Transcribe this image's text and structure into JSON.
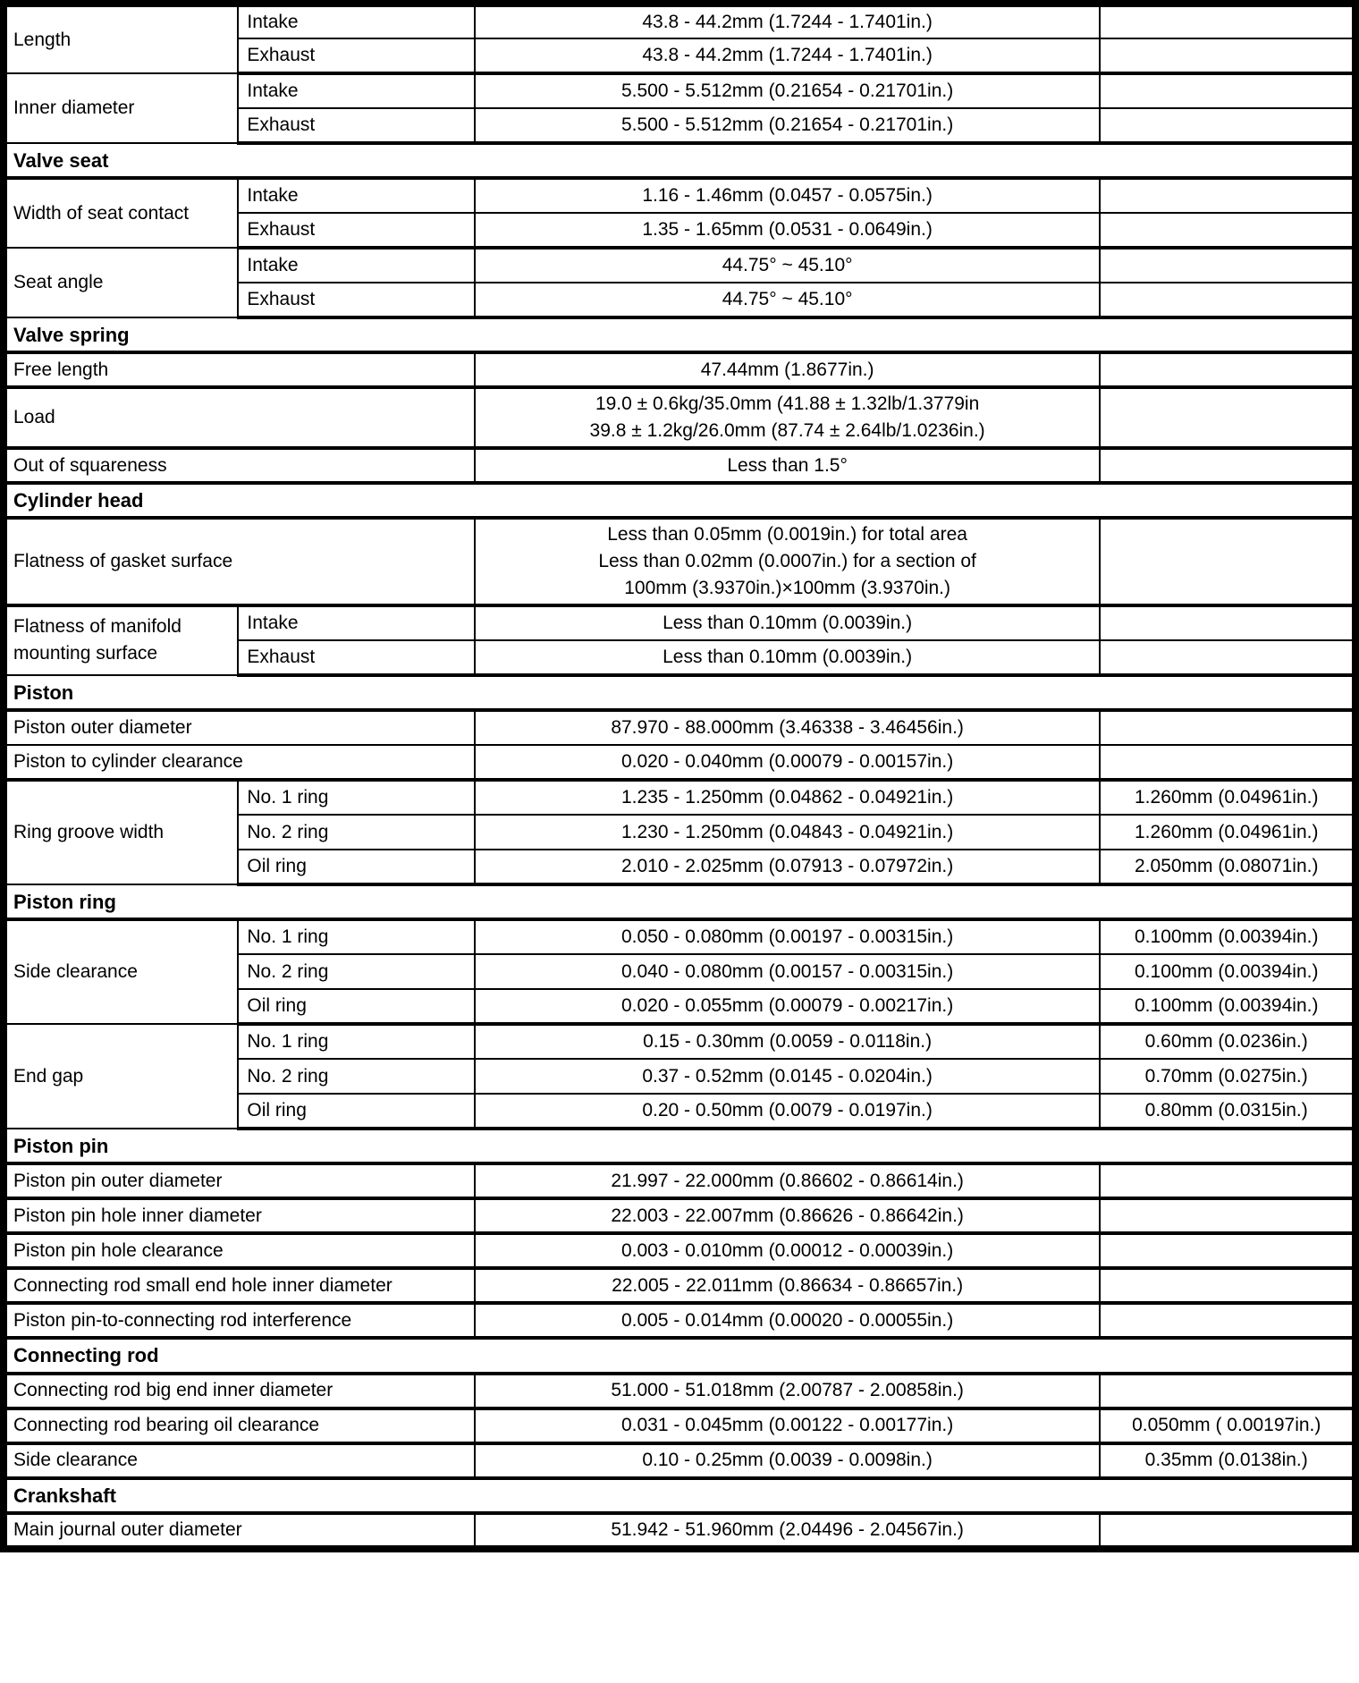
{
  "colors": {
    "background": "#ffffff",
    "text": "#000000",
    "border": "#000000"
  },
  "table": {
    "column_semantics": [
      "item",
      "sub_item",
      "standard_value",
      "limit"
    ],
    "rows": [
      {
        "type": "data",
        "h": "n",
        "thick_bottom": false,
        "cells": [
          {
            "kind": "item",
            "rowspan": 2,
            "text": "Length"
          },
          {
            "kind": "sub",
            "text": "Intake"
          },
          {
            "kind": "std",
            "text": "43.8 - 44.2mm (1.7244 - 1.7401in.)"
          },
          {
            "kind": "lim",
            "text": ""
          }
        ]
      },
      {
        "type": "data",
        "h": "n",
        "thick_bottom": true,
        "cells": [
          {
            "kind": "sub",
            "text": "Exhaust"
          },
          {
            "kind": "std",
            "text": "43.8 - 44.2mm (1.7244 - 1.7401in.)"
          },
          {
            "kind": "lim",
            "text": ""
          }
        ]
      },
      {
        "type": "data",
        "h": "n",
        "thick_bottom": false,
        "cells": [
          {
            "kind": "item",
            "rowspan": 2,
            "text": "Inner diameter"
          },
          {
            "kind": "sub",
            "text": "Intake"
          },
          {
            "kind": "std",
            "text": "5.500 - 5.512mm (0.21654 - 0.21701in.)"
          },
          {
            "kind": "lim",
            "text": ""
          }
        ]
      },
      {
        "type": "data",
        "h": "n",
        "thick_bottom": true,
        "cells": [
          {
            "kind": "sub",
            "text": "Exhaust"
          },
          {
            "kind": "std",
            "text": "5.500 - 5.512mm (0.21654 - 0.21701in.)"
          },
          {
            "kind": "lim",
            "text": ""
          }
        ]
      },
      {
        "type": "section",
        "h": "n",
        "thick_bottom": true,
        "cells": [
          {
            "kind": "section",
            "colspan": 4,
            "text": "Valve seat"
          }
        ]
      },
      {
        "type": "data",
        "h": "n",
        "thick_bottom": false,
        "cells": [
          {
            "kind": "item",
            "rowspan": 2,
            "text": "Width of seat contact"
          },
          {
            "kind": "sub",
            "text": "Intake"
          },
          {
            "kind": "std",
            "text": "1.16 - 1.46mm (0.0457 - 0.0575in.)"
          },
          {
            "kind": "lim",
            "text": ""
          }
        ]
      },
      {
        "type": "data",
        "h": "n",
        "thick_bottom": true,
        "cells": [
          {
            "kind": "sub",
            "text": "Exhaust"
          },
          {
            "kind": "std",
            "text": "1.35 - 1.65mm (0.0531 - 0.0649in.)"
          },
          {
            "kind": "lim",
            "text": ""
          }
        ]
      },
      {
        "type": "data",
        "h": "n",
        "thick_bottom": false,
        "cells": [
          {
            "kind": "item",
            "rowspan": 2,
            "text": "Seat angle"
          },
          {
            "kind": "sub",
            "text": "Intake"
          },
          {
            "kind": "std",
            "text": "44.75° ~ 45.10°"
          },
          {
            "kind": "lim",
            "text": ""
          }
        ]
      },
      {
        "type": "data",
        "h": "n",
        "thick_bottom": true,
        "cells": [
          {
            "kind": "sub",
            "text": "Exhaust"
          },
          {
            "kind": "std",
            "text": "44.75° ~ 45.10°"
          },
          {
            "kind": "lim",
            "text": ""
          }
        ]
      },
      {
        "type": "section",
        "h": "n",
        "thick_bottom": true,
        "cells": [
          {
            "kind": "section",
            "colspan": 4,
            "text": "Valve spring"
          }
        ]
      },
      {
        "type": "data",
        "h": "n",
        "thick_bottom": true,
        "cells": [
          {
            "kind": "item",
            "colspan": 2,
            "text": "Free length"
          },
          {
            "kind": "std",
            "text": "47.44mm (1.8677in.)"
          },
          {
            "kind": "lim",
            "text": ""
          }
        ]
      },
      {
        "type": "data",
        "h": "2",
        "thick_bottom": true,
        "cells": [
          {
            "kind": "item",
            "colspan": 2,
            "text": "Load"
          },
          {
            "kind": "std",
            "lines": [
              "19.0 ± 0.6kg/35.0mm (41.88 ± 1.32lb/1.3779in",
              "39.8 ± 1.2kg/26.0mm (87.74 ± 2.64lb/1.0236in.)"
            ]
          },
          {
            "kind": "lim",
            "text": ""
          }
        ]
      },
      {
        "type": "data",
        "h": "n",
        "thick_bottom": true,
        "cells": [
          {
            "kind": "item",
            "colspan": 2,
            "text": "Out of squareness"
          },
          {
            "kind": "std",
            "text": "Less than 1.5°"
          },
          {
            "kind": "lim",
            "text": ""
          }
        ]
      },
      {
        "type": "section",
        "h": "n",
        "thick_bottom": true,
        "cells": [
          {
            "kind": "section",
            "colspan": 4,
            "text": "Cylinder head"
          }
        ]
      },
      {
        "type": "data",
        "h": "3",
        "thick_bottom": true,
        "cells": [
          {
            "kind": "item",
            "colspan": 2,
            "text": "Flatness of gasket surface"
          },
          {
            "kind": "std",
            "lines": [
              "Less than 0.05mm (0.0019in.) for total area",
              "Less than 0.02mm (0.0007in.) for a section of",
              "100mm (3.9370in.)×100mm (3.9370in.)"
            ]
          },
          {
            "kind": "lim",
            "text": ""
          }
        ]
      },
      {
        "type": "data",
        "h": "n",
        "thick_bottom": false,
        "cells": [
          {
            "kind": "item",
            "rowspan": 2,
            "text": "Flatness of manifold mounting surface"
          },
          {
            "kind": "sub",
            "text": "Intake"
          },
          {
            "kind": "std",
            "text": "Less than 0.10mm (0.0039in.)"
          },
          {
            "kind": "lim",
            "text": ""
          }
        ]
      },
      {
        "type": "data",
        "h": "n",
        "thick_bottom": true,
        "cells": [
          {
            "kind": "sub",
            "text": "Exhaust"
          },
          {
            "kind": "std",
            "text": "Less than 0.10mm (0.0039in.)"
          },
          {
            "kind": "lim",
            "text": ""
          }
        ]
      },
      {
        "type": "section",
        "h": "n",
        "thick_bottom": true,
        "cells": [
          {
            "kind": "section",
            "colspan": 4,
            "text": "Piston"
          }
        ]
      },
      {
        "type": "data",
        "h": "n",
        "thick_bottom": false,
        "cells": [
          {
            "kind": "item",
            "colspan": 2,
            "text": "Piston outer diameter"
          },
          {
            "kind": "std",
            "text": "87.970 - 88.000mm (3.46338 - 3.46456in.)"
          },
          {
            "kind": "lim",
            "text": ""
          }
        ]
      },
      {
        "type": "data",
        "h": "n",
        "thick_bottom": true,
        "cells": [
          {
            "kind": "item",
            "colspan": 2,
            "text": "Piston to cylinder clearance"
          },
          {
            "kind": "std",
            "text": "0.020 - 0.040mm (0.00079 - 0.00157in.)"
          },
          {
            "kind": "lim",
            "text": ""
          }
        ]
      },
      {
        "type": "data",
        "h": "n",
        "thick_bottom": false,
        "cells": [
          {
            "kind": "item",
            "rowspan": 3,
            "text": "Ring groove width"
          },
          {
            "kind": "sub",
            "text": "No. 1 ring"
          },
          {
            "kind": "std",
            "text": "1.235 - 1.250mm (0.04862 - 0.04921in.)"
          },
          {
            "kind": "lim",
            "text": "1.260mm (0.04961in.)"
          }
        ]
      },
      {
        "type": "data",
        "h": "n",
        "thick_bottom": false,
        "cells": [
          {
            "kind": "sub",
            "text": "No. 2 ring"
          },
          {
            "kind": "std",
            "text": "1.230 - 1.250mm (0.04843 - 0.04921in.)"
          },
          {
            "kind": "lim",
            "text": "1.260mm (0.04961in.)"
          }
        ]
      },
      {
        "type": "data",
        "h": "n",
        "thick_bottom": true,
        "cells": [
          {
            "kind": "sub",
            "text": "Oil ring"
          },
          {
            "kind": "std",
            "text": "2.010 - 2.025mm (0.07913 - 0.07972in.)"
          },
          {
            "kind": "lim",
            "text": "2.050mm (0.08071in.)"
          }
        ]
      },
      {
        "type": "section",
        "h": "n",
        "thick_bottom": true,
        "cells": [
          {
            "kind": "section",
            "colspan": 4,
            "text": "Piston ring"
          }
        ]
      },
      {
        "type": "data",
        "h": "n",
        "thick_bottom": false,
        "cells": [
          {
            "kind": "item",
            "rowspan": 3,
            "text": "Side clearance"
          },
          {
            "kind": "sub",
            "text": "No. 1 ring"
          },
          {
            "kind": "std",
            "text": "0.050 - 0.080mm (0.00197 - 0.00315in.)"
          },
          {
            "kind": "lim",
            "text": "0.100mm (0.00394in.)"
          }
        ]
      },
      {
        "type": "data",
        "h": "n",
        "thick_bottom": false,
        "cells": [
          {
            "kind": "sub",
            "text": "No. 2 ring"
          },
          {
            "kind": "std",
            "text": "0.040 - 0.080mm (0.00157 - 0.00315in.)"
          },
          {
            "kind": "lim",
            "text": "0.100mm (0.00394in.)"
          }
        ]
      },
      {
        "type": "data",
        "h": "n",
        "thick_bottom": true,
        "cells": [
          {
            "kind": "sub",
            "text": "Oil ring"
          },
          {
            "kind": "std",
            "text": "0.020 - 0.055mm (0.00079 - 0.00217in.)"
          },
          {
            "kind": "lim",
            "text": "0.100mm (0.00394in.)"
          }
        ]
      },
      {
        "type": "data",
        "h": "n",
        "thick_bottom": false,
        "cells": [
          {
            "kind": "item",
            "rowspan": 3,
            "text": "End gap"
          },
          {
            "kind": "sub",
            "text": "No. 1 ring"
          },
          {
            "kind": "std",
            "text": "0.15 - 0.30mm (0.0059 - 0.0118in.)"
          },
          {
            "kind": "lim",
            "text": "0.60mm (0.0236in.)"
          }
        ]
      },
      {
        "type": "data",
        "h": "n",
        "thick_bottom": false,
        "cells": [
          {
            "kind": "sub",
            "text": "No. 2 ring"
          },
          {
            "kind": "std",
            "text": "0.37 - 0.52mm (0.0145 - 0.0204in.)"
          },
          {
            "kind": "lim",
            "text": "0.70mm (0.0275in.)"
          }
        ]
      },
      {
        "type": "data",
        "h": "n",
        "thick_bottom": true,
        "cells": [
          {
            "kind": "sub",
            "text": "Oil ring"
          },
          {
            "kind": "std",
            "text": "0.20 - 0.50mm (0.0079 - 0.0197in.)"
          },
          {
            "kind": "lim",
            "text": "0.80mm (0.0315in.)"
          }
        ]
      },
      {
        "type": "section",
        "h": "n",
        "thick_bottom": true,
        "cells": [
          {
            "kind": "section",
            "colspan": 4,
            "text": "Piston pin"
          }
        ]
      },
      {
        "type": "data",
        "h": "n",
        "thick_bottom": true,
        "cells": [
          {
            "kind": "item",
            "colspan": 2,
            "text": "Piston pin outer diameter"
          },
          {
            "kind": "std",
            "text": "21.997 - 22.000mm (0.86602 - 0.86614in.)"
          },
          {
            "kind": "lim",
            "text": ""
          }
        ]
      },
      {
        "type": "data",
        "h": "n",
        "thick_bottom": true,
        "cells": [
          {
            "kind": "item",
            "colspan": 2,
            "text": "Piston pin hole inner diameter"
          },
          {
            "kind": "std",
            "text": "22.003 - 22.007mm (0.86626 - 0.86642in.)"
          },
          {
            "kind": "lim",
            "text": ""
          }
        ]
      },
      {
        "type": "data",
        "h": "n",
        "thick_bottom": true,
        "cells": [
          {
            "kind": "item",
            "colspan": 2,
            "text": "Piston pin hole clearance"
          },
          {
            "kind": "std",
            "text": "0.003 - 0.010mm (0.00012 - 0.00039in.)"
          },
          {
            "kind": "lim",
            "text": ""
          }
        ]
      },
      {
        "type": "data",
        "h": "n",
        "thick_bottom": true,
        "cells": [
          {
            "kind": "item",
            "colspan": 2,
            "text": "Connecting rod small end hole inner diameter"
          },
          {
            "kind": "std",
            "text": "22.005 - 22.011mm (0.86634 - 0.86657in.)"
          },
          {
            "kind": "lim",
            "text": ""
          }
        ]
      },
      {
        "type": "data",
        "h": "n",
        "thick_bottom": true,
        "cells": [
          {
            "kind": "item",
            "colspan": 2,
            "text": "Piston pin-to-connecting rod interference"
          },
          {
            "kind": "std",
            "text": "0.005 - 0.014mm (0.00020 - 0.00055in.)"
          },
          {
            "kind": "lim",
            "text": ""
          }
        ]
      },
      {
        "type": "section",
        "h": "n",
        "thick_bottom": true,
        "cells": [
          {
            "kind": "section",
            "colspan": 4,
            "text": "Connecting rod"
          }
        ]
      },
      {
        "type": "data",
        "h": "n",
        "thick_bottom": true,
        "cells": [
          {
            "kind": "item",
            "colspan": 2,
            "text": "Connecting rod big end inner diameter"
          },
          {
            "kind": "std",
            "text": "51.000 - 51.018mm (2.00787 - 2.00858in.)"
          },
          {
            "kind": "lim",
            "text": ""
          }
        ]
      },
      {
        "type": "data",
        "h": "n",
        "thick_bottom": true,
        "cells": [
          {
            "kind": "item",
            "colspan": 2,
            "text": "Connecting rod bearing oil clearance"
          },
          {
            "kind": "std",
            "text": "0.031 - 0.045mm (0.00122 - 0.00177in.)"
          },
          {
            "kind": "lim",
            "text": "0.050mm ( 0.00197in.)"
          }
        ]
      },
      {
        "type": "data",
        "h": "n",
        "thick_bottom": true,
        "cells": [
          {
            "kind": "item",
            "colspan": 2,
            "text": "Side clearance"
          },
          {
            "kind": "std",
            "text": "0.10 - 0.25mm (0.0039 - 0.0098in.)"
          },
          {
            "kind": "lim",
            "text": "0.35mm (0.0138in.)"
          }
        ]
      },
      {
        "type": "section",
        "h": "n",
        "thick_bottom": true,
        "cells": [
          {
            "kind": "section",
            "colspan": 4,
            "text": "Crankshaft"
          }
        ]
      },
      {
        "type": "data",
        "h": "n",
        "thick_bottom": false,
        "cells": [
          {
            "kind": "item",
            "colspan": 2,
            "text": "Main journal outer diameter"
          },
          {
            "kind": "std",
            "text": "51.942 - 51.960mm (2.04496 - 2.04567in.)"
          },
          {
            "kind": "lim",
            "text": ""
          }
        ]
      }
    ]
  }
}
